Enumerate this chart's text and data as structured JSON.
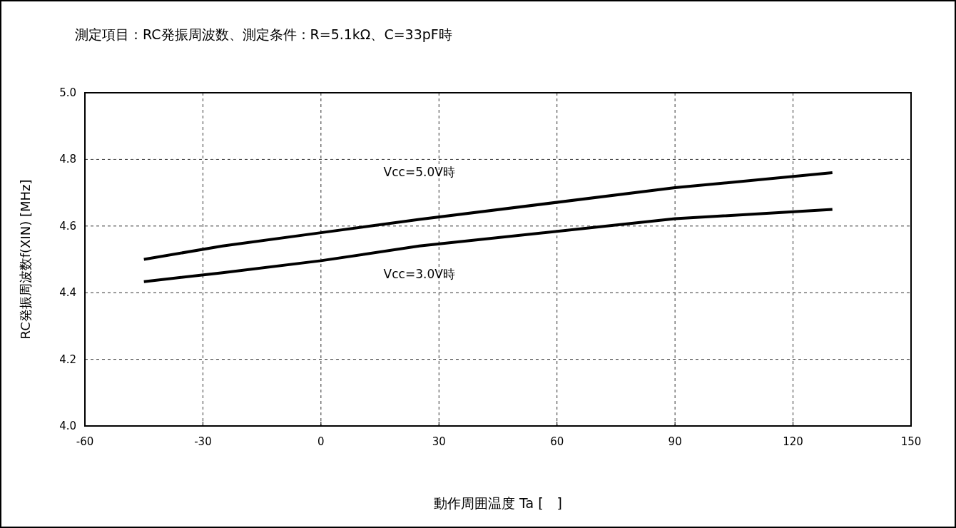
{
  "chart_data": {
    "type": "line",
    "title": "測定項目：RC発振周波数、測定条件：R=5.1kΩ、C=33pF時",
    "xlabel": "動作周囲温度 Ta [　]",
    "ylabel": "RC発振周波数f(XIN) [MHz]",
    "xlim": [
      -60,
      150
    ],
    "xticks": [
      -60,
      -30,
      0,
      30,
      60,
      90,
      120,
      150
    ],
    "ylim": [
      4.0,
      5.0
    ],
    "yticks": [
      {
        "value": 4.0,
        "label": "4.0"
      },
      {
        "value": 4.2,
        "label": "4.2"
      },
      {
        "value": 4.4,
        "label": "4.4"
      },
      {
        "value": 4.6,
        "label": "4.6"
      },
      {
        "value": 4.8,
        "label": "4.8"
      },
      {
        "value": 5.0,
        "label": "5.0"
      }
    ],
    "grid": true,
    "series": [
      {
        "name": "Vcc=5.0V時",
        "color": "#000000",
        "x": [
          -45,
          -25,
          0,
          25,
          90,
          130
        ],
        "values": [
          4.5,
          4.54,
          4.58,
          4.62,
          4.715,
          4.76
        ]
      },
      {
        "name": "Vcc=3.0V時",
        "color": "#000000",
        "x": [
          -45,
          -25,
          0,
          25,
          90,
          130
        ],
        "values": [
          4.433,
          4.46,
          4.496,
          4.54,
          4.622,
          4.65
        ]
      }
    ]
  }
}
